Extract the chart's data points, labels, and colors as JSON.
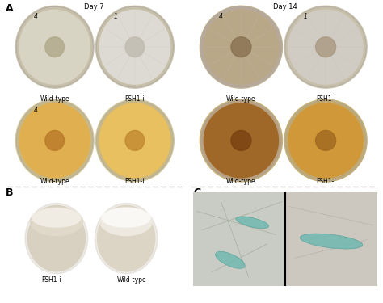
{
  "panel_A": "A",
  "panel_B": "B",
  "panel_C": "C",
  "day7": "Day 7",
  "day14": "Day 14",
  "wild_type": "Wild-type",
  "fsh1i": "FSH1-i",
  "blue_bg": "#7ba3c0",
  "blue_bg2": "#6b93b0",
  "plate_rim": "#c8bfa8",
  "plate_rim2": "#b8a898",
  "colony_wt_d7": "#d8d4c4",
  "colony_fsh_d7": "#dcdad2",
  "colony_wt_d14": "#b8a888",
  "colony_fsh_d14": "#d0ccc4",
  "colony_center_wt_d7": "#b0a888",
  "colony_center_fsh_d7": "#c0bab0",
  "colony_center_wt_d14": "#887050",
  "colony_center_fsh_d14": "#a89880",
  "bot_colony_wt_d7": "#e0b050",
  "bot_colony_fsh_d7": "#e8c060",
  "bot_colony_wt_d14": "#a06828",
  "bot_colony_fsh_d14": "#d09838",
  "bot_center_wt_d7": "#b87828",
  "bot_center_fsh_d7": "#c08830",
  "bot_center_wt_d14": "#784010",
  "bot_center_fsh_d14": "#a06820",
  "agar_color": "#d4c898",
  "flask_bg": "#8899a8",
  "flask_body_fsh": "#d8d0c0",
  "flask_body_wt": "#e8e0d0",
  "colony_fluff_fsh": "#e8e4dc",
  "colony_fluff_wt": "#f0ece4",
  "micro_left_bg": "#c8ccc4",
  "micro_right_bg": "#ccc8c0",
  "teal_conidia": "#70b8b0",
  "label_color": "#222222",
  "dash_color": "#999999",
  "white": "#ffffff",
  "label_fs": 6,
  "panel_fs": 9
}
